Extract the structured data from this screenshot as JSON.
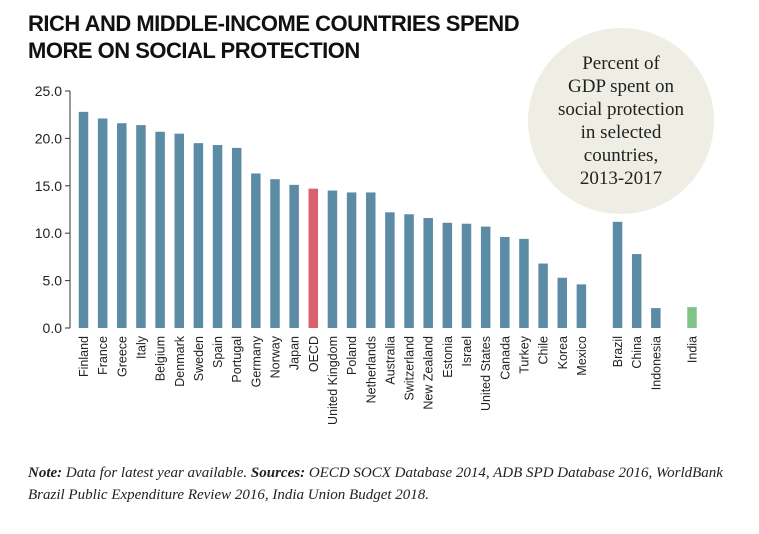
{
  "title_lines": [
    "RICH AND MIDDLE-INCOME COUNTRIES SPEND",
    "MORE ON SOCIAL PROTECTION"
  ],
  "bubble_lines": [
    "Percent of",
    "GDP spent on",
    "social protection",
    "in selected",
    "countries,",
    "2013-2017"
  ],
  "note": {
    "note_label": "Note:",
    "note_text": " Data for latest year available. ",
    "sources_label": "Sources:",
    "sources_text": " OECD SOCX Database 2014, ADB SPD Database 2016, WorldBank Brazil Public Expenditure Review 2016, India Union Budget 2018."
  },
  "colors": {
    "bar": "#5b8ba5",
    "highlight": "#d8616b",
    "india": "#7fc486",
    "axis": "#333333"
  },
  "chart_data": {
    "type": "bar",
    "ylim": [
      0,
      25
    ],
    "yticks": [
      "0.0",
      "5.0",
      "10.0",
      "15.0",
      "20.0",
      "25.0"
    ],
    "groups": [
      {
        "categories": [
          "Finland",
          "France",
          "Greece",
          "Italy",
          "Belgium",
          "Denmark",
          "Sweden",
          "Spain",
          "Portugal",
          "Germany",
          "Norway",
          "Japan",
          "OECD",
          "United Kingdom",
          "Poland",
          "Netherlands",
          "Australia",
          "Switzerland",
          "New Zealand",
          "Estonia",
          "Israel",
          "United States",
          "Canada",
          "Turkey",
          "Chile",
          "Korea",
          "Mexico"
        ],
        "values": [
          22.8,
          22.1,
          21.6,
          21.4,
          20.7,
          20.5,
          19.5,
          19.3,
          19.0,
          16.3,
          15.7,
          15.1,
          14.7,
          14.5,
          14.3,
          14.3,
          12.2,
          12.0,
          11.6,
          11.1,
          11.0,
          10.7,
          9.6,
          9.4,
          6.8,
          5.3,
          4.6
        ]
      },
      {
        "categories": [
          "Brazil",
          "China",
          "Indonesia"
        ],
        "values": [
          11.2,
          7.8,
          2.1
        ]
      },
      {
        "categories": [
          "India"
        ],
        "values": [
          2.2
        ]
      }
    ],
    "highlight": [
      "OECD"
    ],
    "highlight_india": [
      "India"
    ],
    "grid": false,
    "legend": "none"
  }
}
